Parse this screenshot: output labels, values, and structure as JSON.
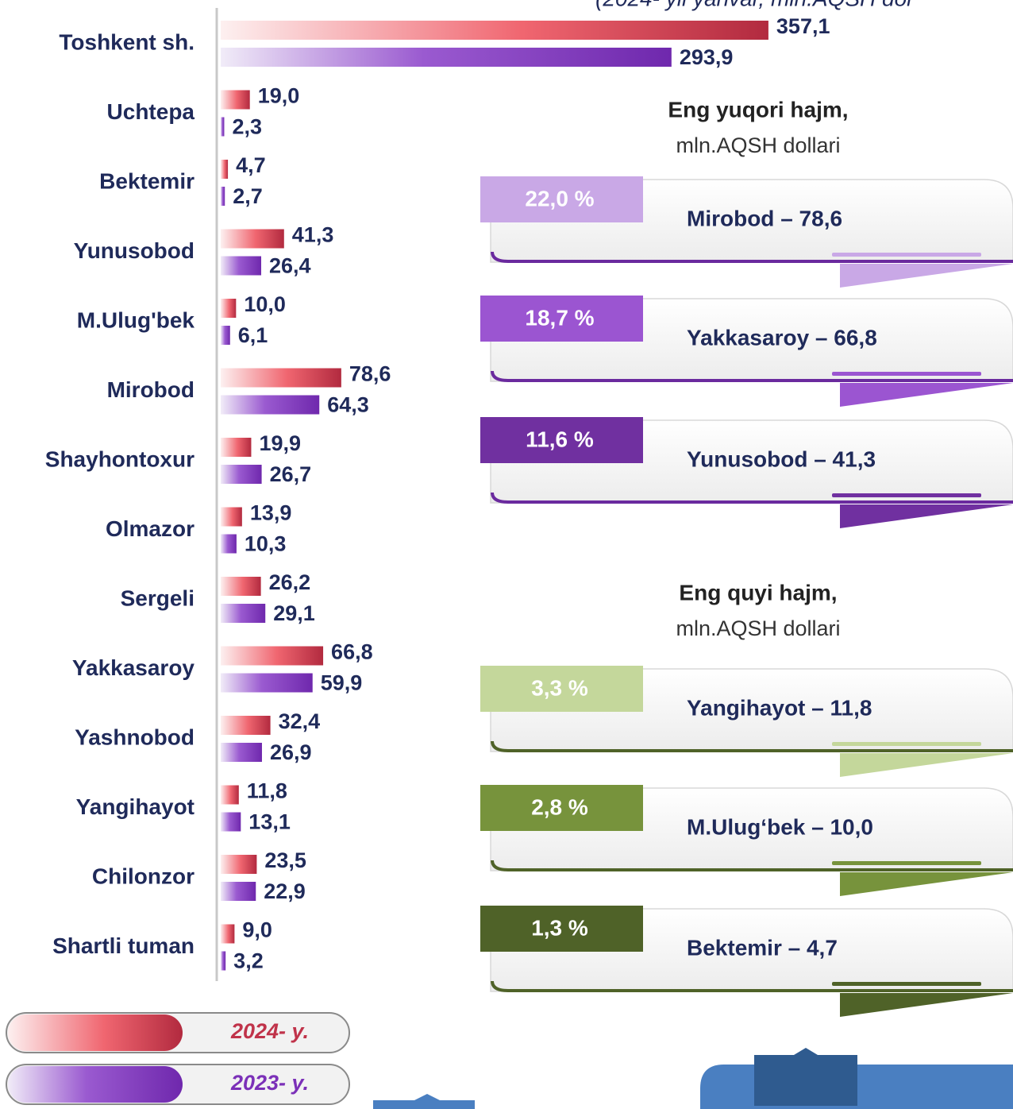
{
  "chart_data": {
    "type": "bar",
    "orientation": "horizontal",
    "subtitle": "(2024- yil yanvar, mln.AQSH dol",
    "categories": [
      "Toshkent sh.",
      "Uchtepa",
      "Bektemir",
      "Yunusobod",
      "M.Ulug'bek",
      "Mirobod",
      "Shayhontoxur",
      "Olmazor",
      "Sergeli",
      "Yakkasaroy",
      "Yashnobod",
      "Yangihayot",
      "Chilonzor",
      "Shartli tuman"
    ],
    "series": [
      {
        "name": "2024- y.",
        "color": "#c0334a",
        "values": [
          357.1,
          19.0,
          4.7,
          41.3,
          10.0,
          78.6,
          19.9,
          13.9,
          26.2,
          66.8,
          32.4,
          11.8,
          23.5,
          9.0
        ],
        "value_labels": [
          "357,1",
          "19,0",
          "4,7",
          "41,3",
          "10,0",
          "78,6",
          "19,9",
          "13,9",
          "26,2",
          "66,8",
          "32,4",
          "11,8",
          "23,5",
          "9,0"
        ]
      },
      {
        "name": "2023- y.",
        "color": "#7b30b8",
        "values": [
          293.9,
          2.3,
          2.7,
          26.4,
          6.1,
          64.3,
          26.7,
          10.3,
          29.1,
          59.9,
          26.9,
          13.1,
          22.9,
          3.2
        ],
        "value_labels": [
          "293,9",
          "2,3",
          "2,7",
          "26,4",
          "6,1",
          "64,3",
          "26,7",
          "10,3",
          "29,1",
          "59,9",
          "26,9",
          "13,1",
          "22,9",
          "3,2"
        ]
      }
    ]
  },
  "highest": {
    "title": "Eng yuqori hajm,",
    "unit": "mln.AQSH dollari",
    "items": [
      {
        "share": "22,0 %",
        "label": "Mirobod – 78,6"
      },
      {
        "share": "18,7 %",
        "label": "Yakkasaroy – 66,8"
      },
      {
        "share": "11,6 %",
        "label": "Yunusobod – 41,3"
      }
    ]
  },
  "lowest": {
    "title": "Eng quyi hajm,",
    "unit": "mln.AQSH dollari",
    "items": [
      {
        "share": "3,3 %",
        "label": "Yangihayot – 11,8"
      },
      {
        "share": "2,8 %",
        "label": "M.Ulug‘bek – 10,0"
      },
      {
        "share": "1,3 %",
        "label": "Bektemir – 4,7"
      }
    ]
  }
}
